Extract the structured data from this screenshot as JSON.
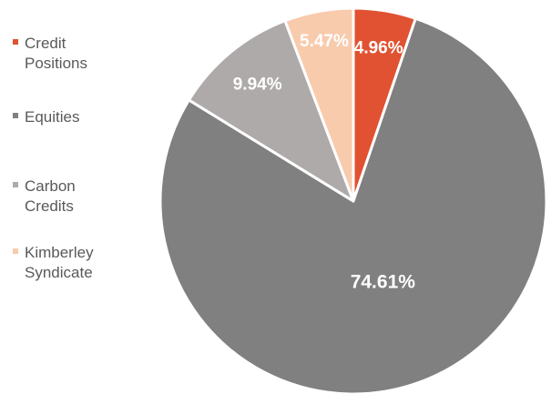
{
  "chart_data": {
    "type": "pie",
    "legend_position": "left",
    "categories": [
      "Credit Positions",
      "Equities",
      "Carbon Credits",
      "Kimberley Syndicate"
    ],
    "values": [
      4.96,
      74.61,
      9.94,
      5.47
    ],
    "data_labels": [
      "4.96%",
      "74.61%",
      "9.94%",
      "5.47%"
    ],
    "colors": [
      "#E05231",
      "#808080",
      "#AEAAAA",
      "#F8CBAD"
    ]
  },
  "legend": {
    "items": [
      {
        "line1": "Credit",
        "line2": "Positions"
      },
      {
        "line1": "Equities",
        "line2": ""
      },
      {
        "line1": "Carbon",
        "line2": "Credits"
      },
      {
        "line1": "Kimberley",
        "line2": "Syndicate"
      }
    ]
  }
}
